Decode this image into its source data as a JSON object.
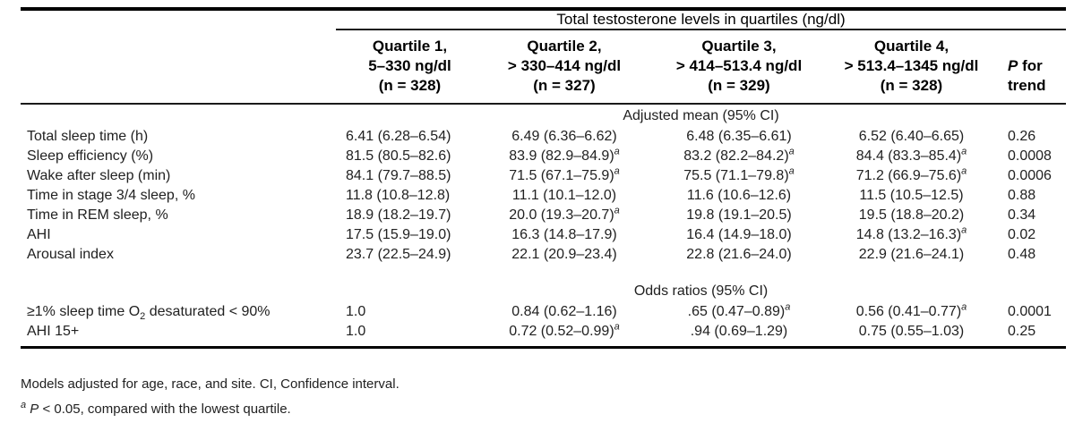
{
  "table": {
    "title": "Total testosterone levels in quartiles (ng/dl)",
    "columns": [
      {
        "lines": [
          "Quartile 1,",
          "5–330 ng/dl",
          "(n = 328)"
        ]
      },
      {
        "lines": [
          "Quartile 2,",
          "> 330–414 ng/dl",
          "(n = 327)"
        ]
      },
      {
        "lines": [
          "Quartile 3,",
          "> 414–513.4 ng/dl",
          "(n = 329)"
        ]
      },
      {
        "lines": [
          "Quartile 4,",
          "> 513.4–1345 ng/dl",
          "(n = 328)"
        ]
      },
      {
        "lines": [
          "*P* for",
          "trend"
        ]
      }
    ],
    "sections": [
      {
        "header": "Adjusted mean (95% CI)",
        "rows": [
          {
            "label": "Total sleep time (h)",
            "values": [
              "6.41 (6.28–6.54)",
              "6.49 (6.36–6.62)",
              "6.48 (6.35–6.61)",
              "6.52 (6.40–6.65)",
              "0.26"
            ]
          },
          {
            "label": "Sleep efficiency (%)",
            "values": [
              "81.5 (80.5–82.6)",
              "83.9 (82.9–84.9)^a^",
              "83.2 (82.2–84.2)^a^",
              "84.4 (83.3–85.4)^a^",
              "0.0008"
            ]
          },
          {
            "label": "Wake after sleep (min)",
            "values": [
              "84.1 (79.7–88.5)",
              "71.5 (67.1–75.9)^a^",
              "75.5 (71.1–79.8)^a^",
              "71.2 (66.9–75.6)^a^",
              "0.0006"
            ]
          },
          {
            "label": "Time in stage 3/4 sleep, %",
            "values": [
              "11.8 (10.8–12.8)",
              "11.1 (10.1–12.0)",
              "11.6 (10.6–12.6)",
              "11.5 (10.5–12.5)",
              "0.88"
            ]
          },
          {
            "label": "Time in REM sleep, %",
            "values": [
              "18.9 (18.2–19.7)",
              "20.0 (19.3–20.7)^a^",
              "19.8 (19.1–20.5)",
              "19.5 (18.8–20.2)",
              "0.34"
            ]
          },
          {
            "label": "AHI",
            "values": [
              "17.5 (15.9–19.0)",
              "16.3 (14.8–17.9)",
              "16.4 (14.9–18.0)",
              "14.8 (13.2–16.3)^a^",
              "0.02"
            ]
          },
          {
            "label": "Arousal index",
            "values": [
              "23.7 (22.5–24.9)",
              "22.1 (20.9–23.4)",
              "22.8 (21.6–24.0)",
              "22.9 (21.6–24.1)",
              "0.48"
            ]
          }
        ]
      },
      {
        "header": "Odds ratios (95% CI)",
        "rows": [
          {
            "label": "≥1% sleep time O~2~ desaturated < 90%",
            "values": [
              "1.0",
              "0.84 (0.62–1.16)",
              ".65 (0.47–0.89)^a^",
              "0.56 (0.41–0.77)^a^",
              "0.0001"
            ]
          },
          {
            "label": "AHI 15+",
            "values": [
              "1.0",
              "0.72 (0.52–0.99)^a^",
              ".94 (0.69–1.29)",
              "0.75 (0.55–1.03)",
              "0.25"
            ]
          }
        ]
      }
    ],
    "footnotes": [
      "Models adjusted for age, race, and site. CI, Confidence interval.",
      "^a^ *P* < 0.05, compared with the lowest quartile."
    ]
  },
  "colors": {
    "text": "#212121",
    "heading": "#000000",
    "rule": "#000000",
    "background": "#ffffff"
  }
}
